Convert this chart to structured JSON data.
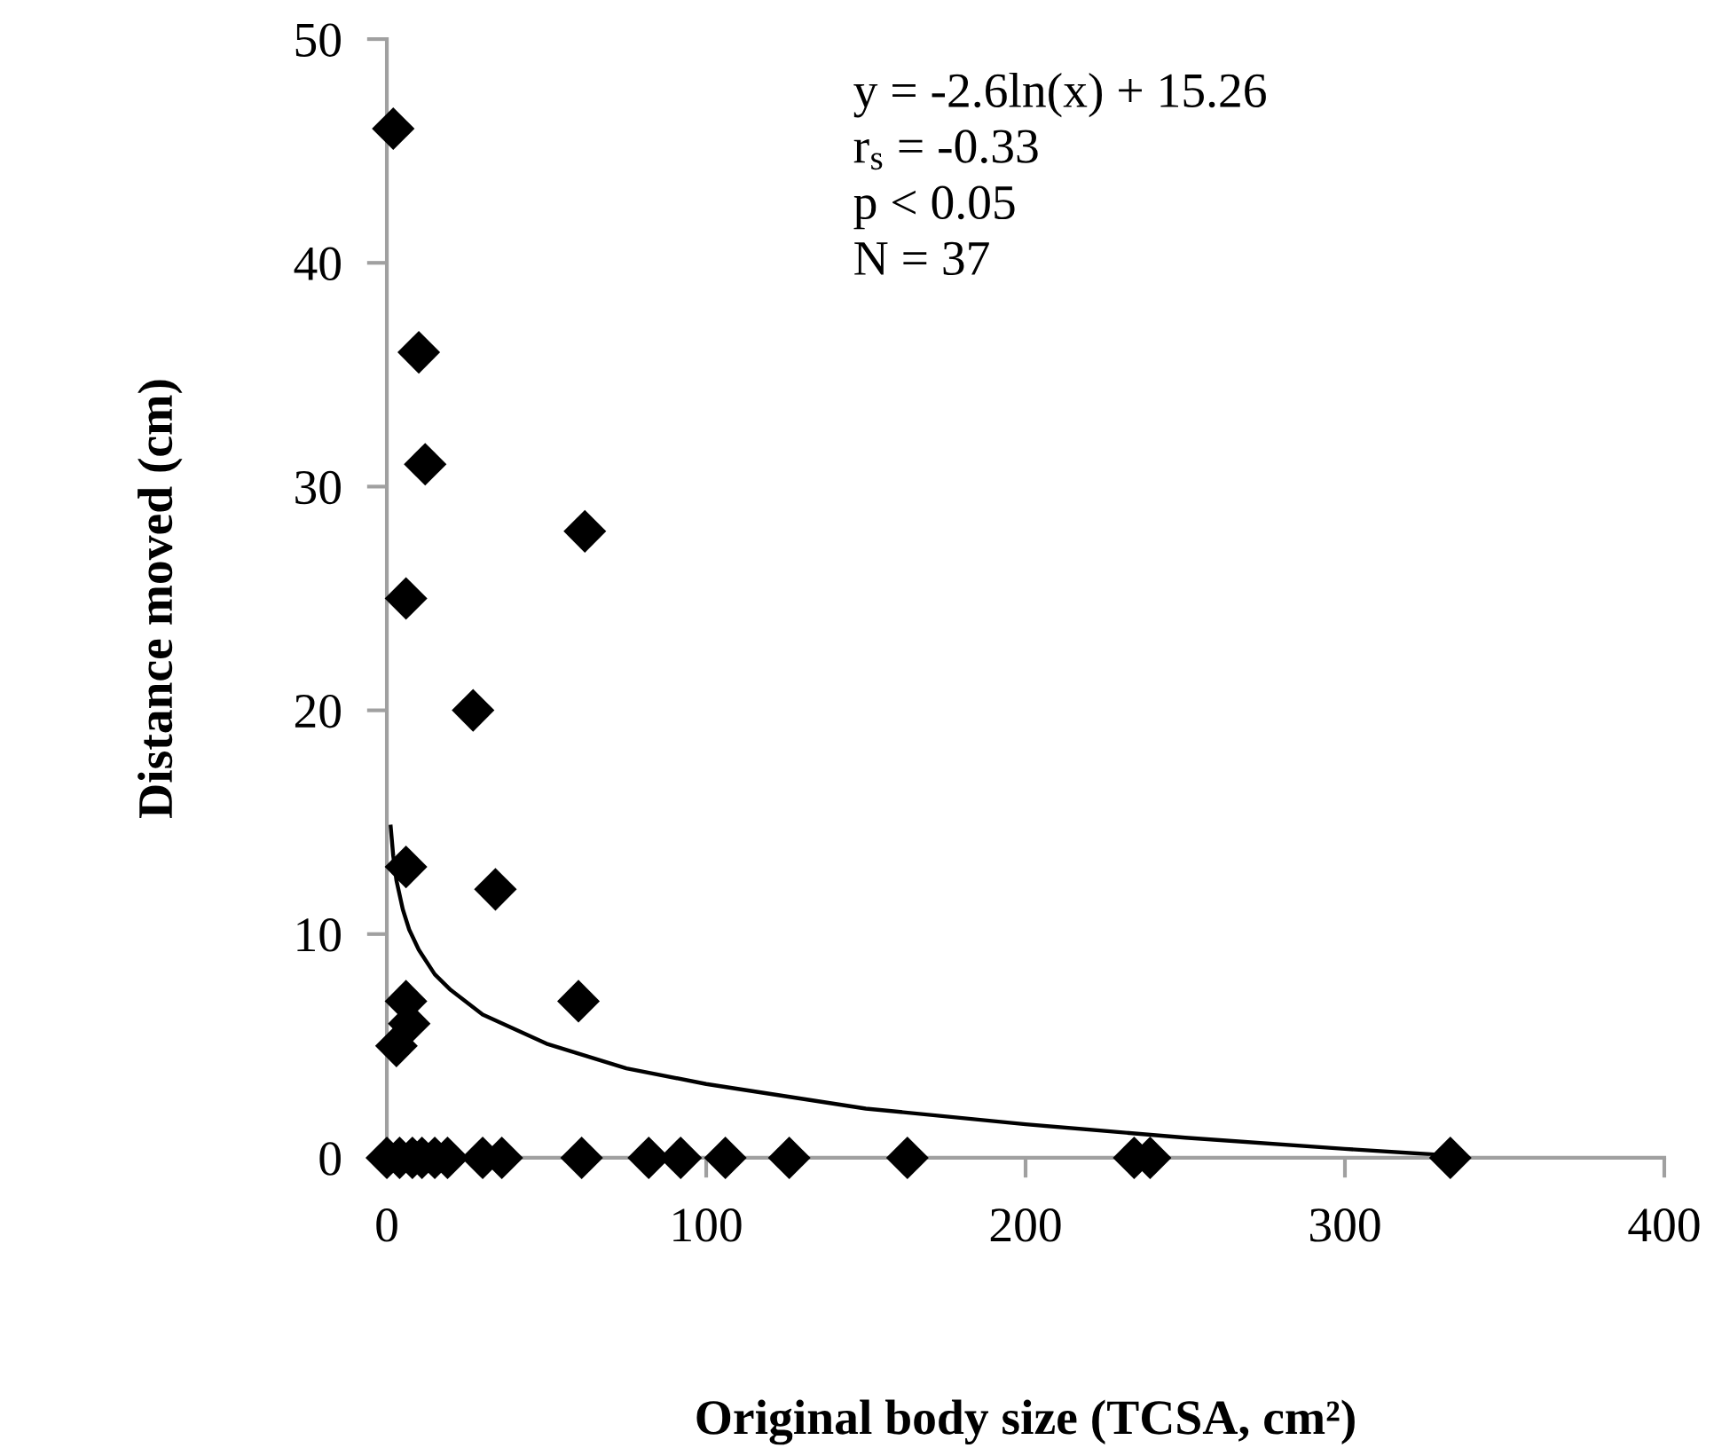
{
  "chart_data": {
    "type": "scatter",
    "xlabel": "Original body size (TCSA, cm²)",
    "ylabel": "Distance moved (cm)",
    "annotations": [
      "y = -2.6ln(x) + 15.26",
      "r$_{s}$ = -0.33",
      "p < 0.05",
      "N = 37"
    ],
    "series": [
      {
        "color": "#000000",
        "marker": "diamond",
        "x": [
          2,
          10,
          12,
          62,
          6,
          27,
          6,
          34,
          6,
          7,
          3,
          60,
          0,
          4,
          8,
          11,
          15,
          19,
          30,
          36,
          61,
          82,
          92,
          106,
          126,
          163,
          234,
          239,
          333
        ],
        "values": [
          46,
          36,
          31,
          28,
          25,
          20,
          13,
          12,
          7,
          6,
          5,
          7,
          0,
          0,
          0,
          0,
          0,
          0,
          0,
          0,
          0,
          0,
          0,
          0,
          0,
          0,
          0,
          0,
          0
        ]
      },
      {
        "type": "line",
        "color": "#000000",
        "marker": "none",
        "line_style": "solid",
        "x": [
          1.2,
          2,
          3,
          5,
          7,
          10,
          15,
          20,
          30,
          50,
          75,
          100,
          150,
          200,
          250,
          300,
          333
        ],
        "values": [
          14.8,
          13.5,
          12.4,
          11.1,
          10.2,
          9.3,
          8.2,
          7.5,
          6.4,
          5.1,
          4.0,
          3.3,
          2.2,
          1.5,
          0.9,
          0.4,
          0.1
        ]
      }
    ],
    "xlim": [
      0,
      400
    ],
    "xticks": [
      0,
      100,
      200,
      300,
      400
    ],
    "ylim": [
      0,
      50
    ],
    "yticks": [
      0,
      10,
      20,
      30,
      40,
      50
    ],
    "grid": false,
    "legend": false
  }
}
